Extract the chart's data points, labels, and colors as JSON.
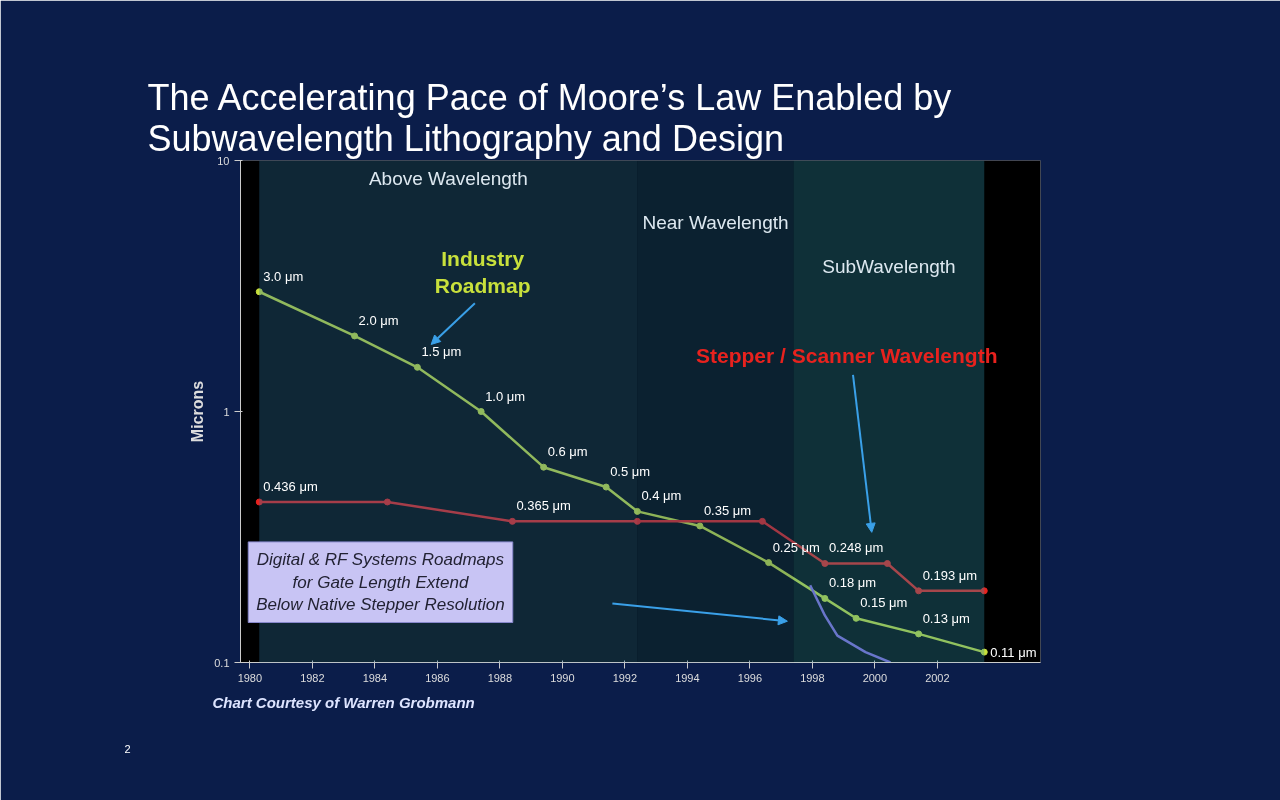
{
  "chart_data": {
    "type": "line",
    "title": "The Accelerating  Pace of Moore’s Law Enabled by Subwavelength Lithography and Design",
    "ylabel": "Microns",
    "log": "y",
    "grid": false,
    "marker": "circle",
    "line_style": "solid",
    "xlim": [
      1979.7,
      2005.3
    ],
    "ylim": [
      0.1,
      10
    ],
    "xticks": [
      1980,
      1982,
      1984,
      1986,
      1988,
      1990,
      1992,
      1994,
      1996,
      1998,
      2000,
      2002
    ],
    "yticks": [
      {
        "value": 0.1,
        "label": "0.1"
      },
      {
        "value": 1,
        "label": "1"
      },
      {
        "value": 10,
        "label": "10"
      }
    ],
    "bands": [
      {
        "axis": "x",
        "from": 1980.3,
        "to": 1992.4,
        "label": "Above Wavelength",
        "color": "#2a6f9a"
      },
      {
        "axis": "x",
        "from": 1992.4,
        "to": 1997.4,
        "label": "Near Wavelength",
        "color": "#1f5f8a"
      },
      {
        "axis": "x",
        "from": 1997.4,
        "to": 2003.5,
        "label": "SubWavelength",
        "color": "#2a8aa0"
      }
    ],
    "series": [
      {
        "name": "Industry Roadmap",
        "color": "#c8e03c",
        "x": [
          1980.3,
          1983.35,
          1985.36,
          1987.4,
          1989.4,
          1991.4,
          1992.4,
          1994.4,
          1996.6,
          1998.4,
          1999.4,
          2001.4,
          2003.5
        ],
        "values": [
          3.0,
          2.0,
          1.5,
          1.0,
          0.6,
          0.5,
          0.4,
          0.35,
          0.25,
          0.18,
          0.15,
          0.13,
          0.11
        ],
        "value_labels": [
          "3.0 μm",
          "2.0 μm",
          "1.5 μm",
          "1.0 μm",
          "0.6 μm",
          "0.5 μm",
          "0.4 μm",
          "0.35 μm",
          "0.25 μm",
          "0.18 μm",
          "0.15 μm",
          "0.13 μm",
          "0.11 μm"
        ]
      },
      {
        "name": "Stepper / Scanner Wavelength",
        "color": "#e8221e",
        "x": [
          1980.3,
          1984.4,
          1988.4,
          1992.4,
          1996.4,
          1998.4,
          2000.4,
          2001.4,
          2003.5
        ],
        "values": [
          0.436,
          0.436,
          0.365,
          0.365,
          0.365,
          0.248,
          0.248,
          0.193,
          0.193
        ],
        "value_labels": [
          "0.436 μm",
          null,
          "0.365 μm",
          null,
          null,
          "0.248 μm",
          null,
          "0.193 μm",
          null
        ]
      },
      {
        "color": "#8a6be0",
        "marker": "none",
        "x": [
          1997.93,
          1998.4,
          1998.8,
          1999.7,
          2000.5
        ],
        "values": [
          0.203,
          0.154,
          0.128,
          0.11,
          0.1
        ]
      }
    ],
    "annotations": [
      "Digital & RF Systems Roadmaps for Gate Length Extend Below Native Stepper Resolution",
      "Chart Courtesy of Warren Grobmann",
      "2"
    ]
  }
}
